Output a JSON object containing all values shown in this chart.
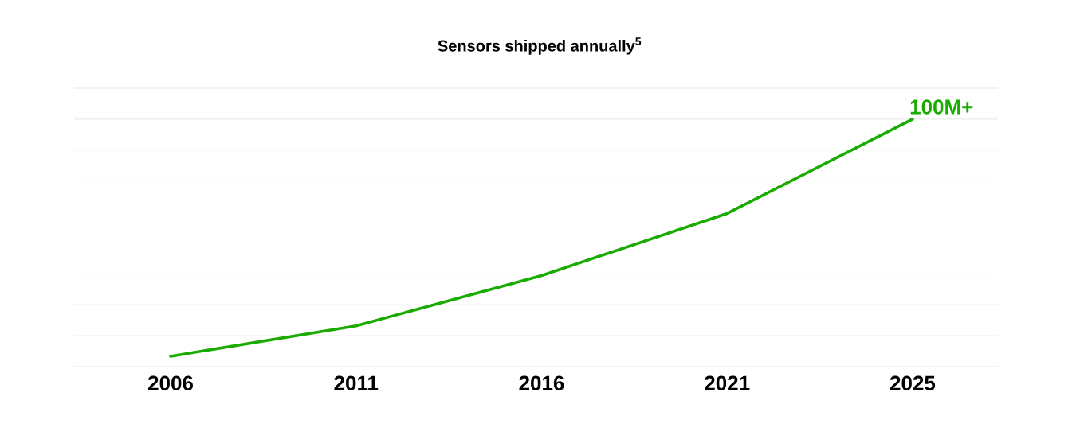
{
  "chart_data": {
    "type": "line",
    "title": "Sensors shipped annually$^{5}$",
    "categories": [
      "2006",
      "2011",
      "2016",
      "2021",
      "2025"
    ],
    "series": [
      {
        "color": "#1aab00",
        "values": [
          4.2,
          16.5,
          36.8,
          61.9,
          100
        ],
        "value_labels": [
          null,
          null,
          null,
          null,
          "100M+"
        ]
      }
    ],
    "ylim": [
      0,
      112.5
    ],
    "yticks": [
      {
        "value": 0,
        "label": null
      },
      {
        "value": 12.5,
        "label": null
      },
      {
        "value": 25,
        "label": null
      },
      {
        "value": 37.5,
        "label": null
      },
      {
        "value": 50,
        "label": null
      },
      {
        "value": 62.5,
        "label": null
      },
      {
        "value": 75,
        "label": null
      },
      {
        "value": 87.5,
        "label": null
      },
      {
        "value": 100,
        "label": null
      },
      {
        "value": 112.5,
        "label": null
      }
    ],
    "grid": "y",
    "marker": "none",
    "line_style": "solid"
  }
}
